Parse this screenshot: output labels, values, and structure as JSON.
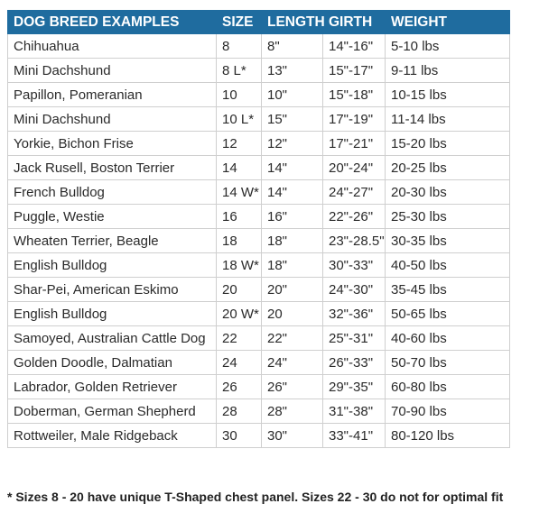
{
  "table": {
    "headers": [
      "DOG BREED EXAMPLES",
      "SIZE",
      "LENGTH",
      "GIRTH",
      "WEIGHT"
    ],
    "rows": [
      [
        "Chihuahua",
        "8",
        "8\"",
        "14\"-16\"",
        "5-10 lbs"
      ],
      [
        "Mini Dachshund",
        "8 L*",
        "13\"",
        "15\"-17\"",
        "9-11 lbs"
      ],
      [
        "Papillon, Pomeranian",
        "10",
        "10\"",
        "15\"-18\"",
        "10-15 lbs"
      ],
      [
        "Mini Dachshund",
        "10 L*",
        "15\"",
        "17\"-19\"",
        "11-14 lbs"
      ],
      [
        "Yorkie, Bichon Frise",
        "12",
        "12\"",
        "17\"-21\"",
        "15-20 lbs"
      ],
      [
        "Jack Rusell, Boston Terrier",
        "14",
        "14\"",
        "20\"-24\"",
        "20-25 lbs"
      ],
      [
        "French Bulldog",
        "14 W*",
        "14\"",
        "24\"-27\"",
        "20-30 lbs"
      ],
      [
        "Puggle, Westie",
        "16",
        "16\"",
        "22\"-26\"",
        "25-30 lbs"
      ],
      [
        "Wheaten Terrier, Beagle",
        "18",
        "18\"",
        "23\"-28.5\"",
        "30-35 lbs"
      ],
      [
        "English Bulldog",
        "18 W*",
        "18\"",
        "30\"-33\"",
        "40-50 lbs"
      ],
      [
        "Shar-Pei, American Eskimo",
        "20",
        "20\"",
        "24\"-30\"",
        "35-45 lbs"
      ],
      [
        "English Bulldog",
        "20 W*",
        "20",
        "32\"-36\"",
        "50-65 lbs"
      ],
      [
        "Samoyed, Australian Cattle Dog",
        "22",
        "22\"",
        "25\"-31\"",
        "40-60 lbs"
      ],
      [
        "Golden Doodle, Dalmatian",
        "24",
        "24\"",
        "26\"-33\"",
        "50-70 lbs"
      ],
      [
        "Labrador, Golden Retriever",
        "26",
        "26\"",
        "29\"-35\"",
        "60-80 lbs"
      ],
      [
        "Doberman, German Shepherd",
        "28",
        "28\"",
        "31\"-38\"",
        "70-90 lbs"
      ],
      [
        "Rottweiler, Male Ridgeback",
        "30",
        "30\"",
        "33\"-41\"",
        "80-120 lbs"
      ]
    ]
  },
  "footnote": "* Sizes 8 - 20 have unique T-Shaped chest panel. Sizes 22 - 30 do not for optimal fit",
  "colors": {
    "header_background": "#1f6c9f",
    "header_text": "#ffffff",
    "border": "#cfcfcf"
  }
}
